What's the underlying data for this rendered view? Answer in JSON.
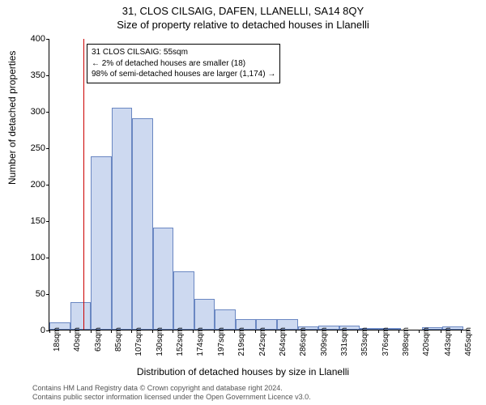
{
  "title_main": "31, CLOS CILSAIG, DAFEN, LLANELLI, SA14 8QY",
  "title_sub": "Size of property relative to detached houses in Llanelli",
  "ylabel": "Number of detached properties",
  "xlabel": "Distribution of detached houses by size in Llanelli",
  "footer_line1": "Contains HM Land Registry data © Crown copyright and database right 2024.",
  "footer_line2": "Contains public sector information licensed under the Open Government Licence v3.0.",
  "chart": {
    "type": "histogram",
    "ylim": [
      0,
      400
    ],
    "yticks": [
      0,
      50,
      100,
      150,
      200,
      250,
      300,
      350,
      400
    ],
    "x_min": 18,
    "x_max": 476,
    "bin_width": 22.5,
    "xtick_values": [
      18,
      40,
      63,
      85,
      107,
      130,
      152,
      174,
      197,
      219,
      242,
      264,
      286,
      309,
      331,
      353,
      376,
      398,
      420,
      443,
      465
    ],
    "xtick_unit": "sqm",
    "bar_fill": "#cdd9f0",
    "bar_stroke": "#6a87c2",
    "marker_value": 55,
    "marker_color": "#cc0000",
    "bins": [
      {
        "start": 18,
        "count": 10
      },
      {
        "start": 40.5,
        "count": 38
      },
      {
        "start": 63,
        "count": 238
      },
      {
        "start": 85.5,
        "count": 305
      },
      {
        "start": 108,
        "count": 290
      },
      {
        "start": 130.5,
        "count": 140
      },
      {
        "start": 153,
        "count": 80
      },
      {
        "start": 175.5,
        "count": 42
      },
      {
        "start": 198,
        "count": 28
      },
      {
        "start": 220.5,
        "count": 15
      },
      {
        "start": 243,
        "count": 14
      },
      {
        "start": 265.5,
        "count": 15
      },
      {
        "start": 288,
        "count": 5
      },
      {
        "start": 310.5,
        "count": 6
      },
      {
        "start": 333,
        "count": 6
      },
      {
        "start": 355.5,
        "count": 2
      },
      {
        "start": 378,
        "count": 2
      },
      {
        "start": 400.5,
        "count": 0
      },
      {
        "start": 423,
        "count": 3
      },
      {
        "start": 445.5,
        "count": 5
      }
    ]
  },
  "annotation": {
    "line1": "31 CLOS CILSAIG: 55sqm",
    "line2": "← 2% of detached houses are smaller (18)",
    "line3": "98% of semi-detached houses are larger (1,174) →",
    "border_color": "#000000",
    "bg_color": "#ffffff",
    "fontsize": 10
  }
}
